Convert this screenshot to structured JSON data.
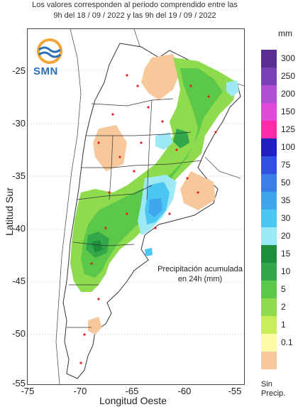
{
  "header": {
    "line1": "Los valores corresponden al periodo comprendido entre las",
    "line2": "9h del 18 / 09 / 2022  y las 9h del 19 / 09 / 2022"
  },
  "logo": {
    "text": "SMN"
  },
  "axes": {
    "xlabel": "Longitud Oeste",
    "ylabel": "Latitud Sur",
    "xticks": [
      "-75",
      "-70",
      "-65",
      "-60",
      "-55"
    ],
    "yticks": [
      "-25",
      "-30",
      "-35",
      "-40",
      "-45",
      "-50",
      "-55"
    ]
  },
  "annotation": {
    "line1": "Precipitación acumulada",
    "line2": "en 24h (mm)"
  },
  "legend": {
    "unit": "mm",
    "no_precip_label": "Sin",
    "no_precip_label2": "Precip.",
    "levels": [
      {
        "label": "300",
        "color": "#5a2d91"
      },
      {
        "label": "250",
        "color": "#7b3fb5"
      },
      {
        "label": "200",
        "color": "#b04fd6"
      },
      {
        "label": "150",
        "color": "#e04ad8"
      },
      {
        "label": "125",
        "color": "#ff2aa8"
      },
      {
        "label": "100",
        "color": "#2020c0"
      },
      {
        "label": "75",
        "color": "#3050e0"
      },
      {
        "label": "50",
        "color": "#3a7fe8"
      },
      {
        "label": "35",
        "color": "#3fa6ee"
      },
      {
        "label": "30",
        "color": "#4cc6f2"
      },
      {
        "label": "20",
        "color": "#9de9f6"
      },
      {
        "label": "15",
        "color": "#1e8e3c"
      },
      {
        "label": "10",
        "color": "#33a84a"
      },
      {
        "label": "5",
        "color": "#5cc84a"
      },
      {
        "label": "2",
        "color": "#8edc4e"
      },
      {
        "label": "1",
        "color": "#c8ee5a"
      },
      {
        "label": "0.1",
        "color": "#fbfba8"
      },
      {
        "label": "",
        "color": "#f6c89c"
      }
    ]
  }
}
